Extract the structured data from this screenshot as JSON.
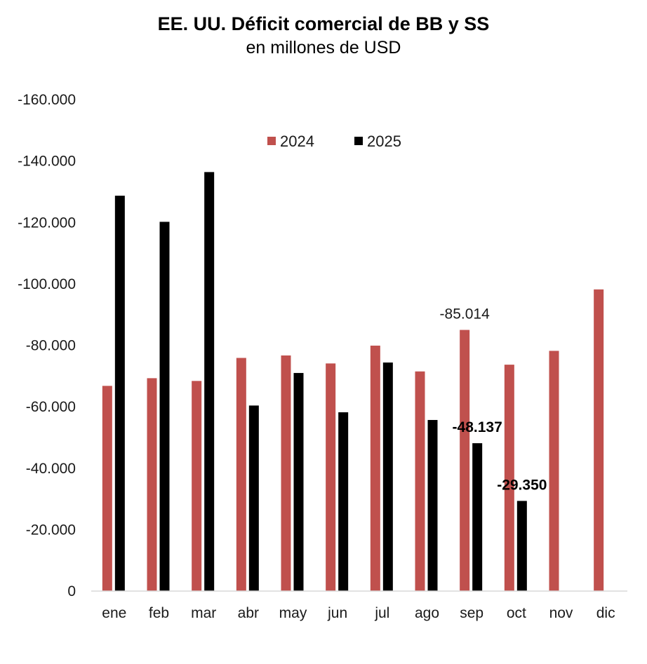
{
  "chart_data": {
    "type": "bar",
    "title": "EE. UU. Déficit comercial de BB y SS",
    "subtitle": "en millones de USD",
    "xlabel": "",
    "ylabel": "",
    "categories": [
      "ene",
      "feb",
      "mar",
      "abr",
      "may",
      "jun",
      "jul",
      "ago",
      "sep",
      "oct",
      "nov",
      "dic"
    ],
    "series": [
      {
        "name": "2024",
        "color": "#c0504d",
        "values": [
          -66800,
          -69300,
          -68400,
          -75900,
          -76700,
          -74100,
          -79900,
          -71500,
          -85014,
          -73700,
          -78200,
          -98200
        ]
      },
      {
        "name": "2025",
        "color": "#000000",
        "values": [
          -128700,
          -120200,
          -136400,
          -60400,
          -71000,
          -58200,
          -74400,
          -55700,
          -48137,
          -29350,
          null,
          null
        ]
      }
    ],
    "ylim": [
      0,
      -160000
    ],
    "yticks": [
      0,
      -20000,
      -40000,
      -60000,
      -80000,
      -100000,
      -120000,
      -140000,
      -160000
    ],
    "ytick_labels": [
      "0",
      "-20.000",
      "-40.000",
      "-60.000",
      "-80.000",
      "-100.000",
      "-120.000",
      "-140.000",
      "-160.000"
    ],
    "legend_position": "top-center",
    "grid": false,
    "annotations": [
      {
        "series": "2024",
        "category": "sep",
        "text": "-85.014",
        "bold": false
      },
      {
        "series": "2025",
        "category": "sep",
        "text": "-48.137",
        "bold": true
      },
      {
        "series": "2025",
        "category": "oct",
        "text": "-29.350",
        "bold": true
      }
    ]
  }
}
